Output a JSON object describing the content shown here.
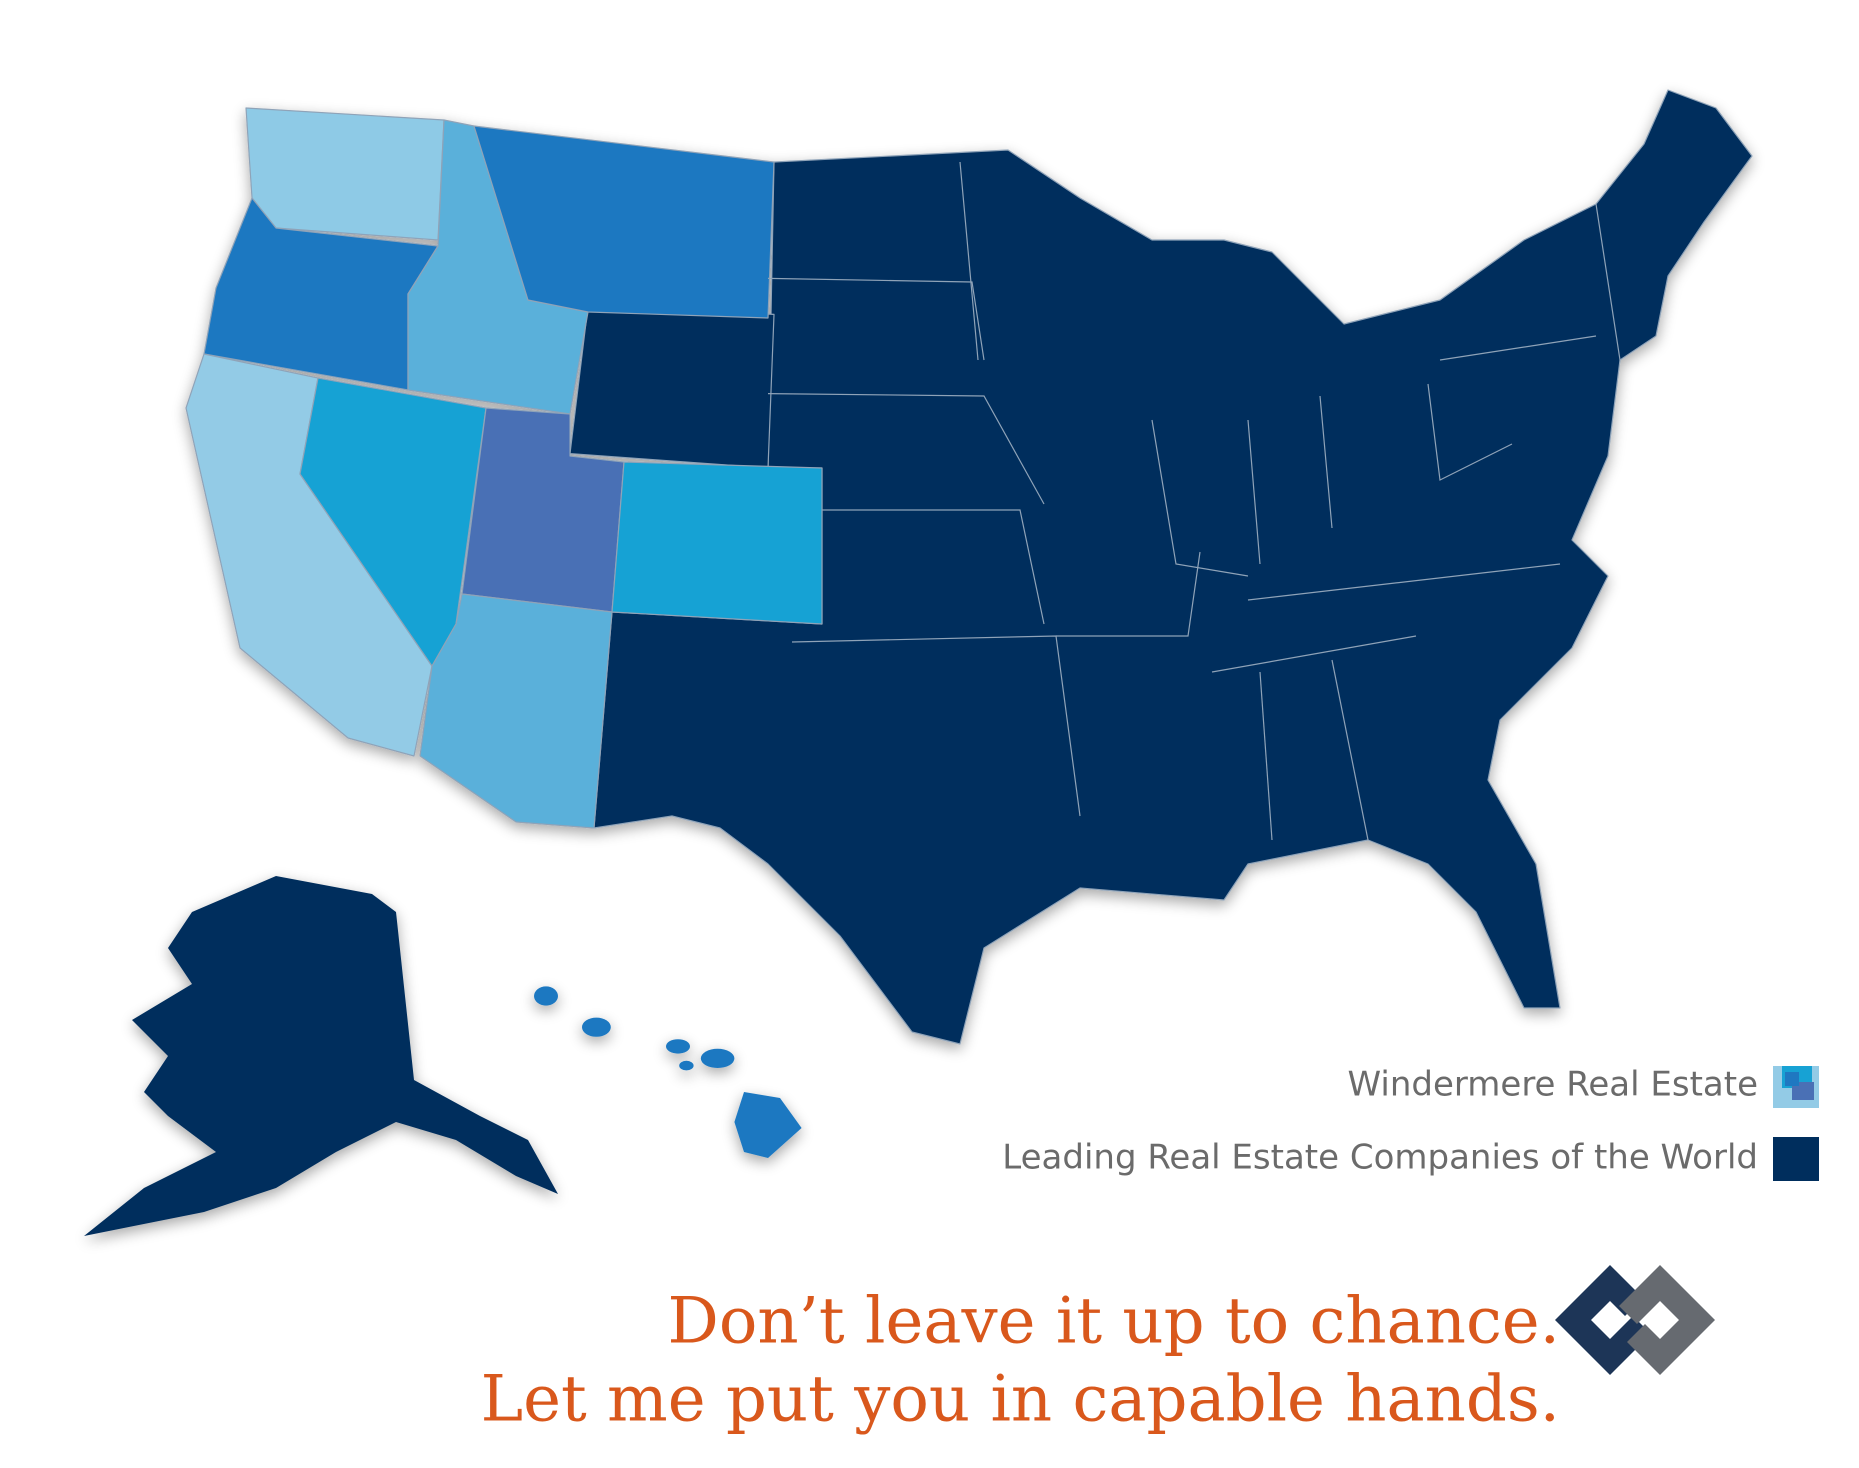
{
  "legend": {
    "items": [
      {
        "label": "Windermere Real Estate"
      },
      {
        "label": "Leading Real Estate Companies of the World"
      }
    ]
  },
  "tagline": {
    "lines": [
      "Don’t leave it up to chance.",
      "Let me put you in capable hands."
    ]
  }
}
